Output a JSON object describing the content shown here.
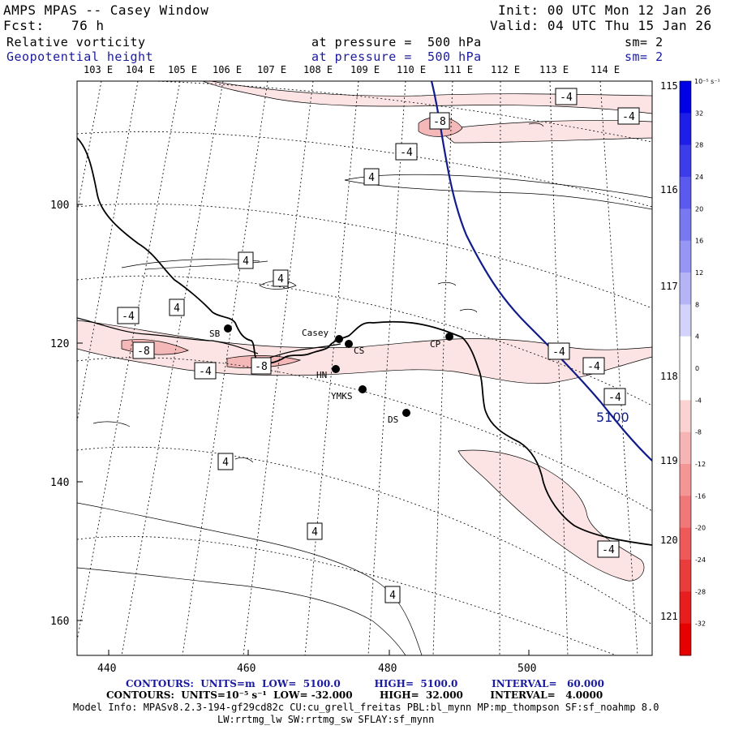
{
  "header": {
    "model_title": "AMPS MPAS -- Casey Window",
    "init": "Init: 00 UTC Mon 12 Jan 26",
    "fcst_label": "Fcst:",
    "fcst_value": "76 h",
    "valid": "Valid: 04 UTC Thu 15 Jan 26",
    "field1": "Relative vorticity",
    "field1_level": "at pressure =  500 hPa",
    "field1_sm": "sm= 2",
    "field2": "Geopotential height",
    "field2_level": "at pressure =  500 hPa",
    "field2_sm": "sm= 2"
  },
  "map": {
    "lon_labels_top": [
      "103 E",
      "104 E",
      "105 E",
      "106 E",
      "107 E",
      "108 E",
      "109 E",
      "110 E",
      "111 E",
      "112 E",
      "113 E",
      "114 E"
    ],
    "lon_labels_right": [
      "115 E",
      "116 E",
      "117 E",
      "118 E",
      "119 E",
      "120 E",
      "121 E"
    ],
    "x_ticks": [
      "440",
      "460",
      "480",
      "500"
    ],
    "y_ticks": [
      "100",
      "120",
      "140",
      "160"
    ],
    "stations": [
      {
        "name": "SB"
      },
      {
        "name": "Casey"
      },
      {
        "name": "CS"
      },
      {
        "name": "HN"
      },
      {
        "name": "YMKS"
      },
      {
        "name": "CP"
      },
      {
        "name": "DS"
      }
    ],
    "vort_labels": [
      "-4",
      "-4",
      "-8",
      "-4",
      "4",
      "4",
      "4",
      "-4",
      "4",
      "-8",
      "-4",
      "-8",
      "-4",
      "-4",
      "-4",
      "4",
      "4",
      "4",
      "-4"
    ],
    "height_label": "5100",
    "colors": {
      "height_contour": "#101c8c",
      "coast": "#000000",
      "neg_fill": "#fce4e4",
      "neg_fill2": "#f4b8b8"
    }
  },
  "colorbar": {
    "unit": "10⁻⁵ s⁻¹",
    "labels": [
      "32",
      "28",
      "24",
      "20",
      "16",
      "12",
      "8",
      "4",
      "0",
      "-4",
      "-8",
      "-12",
      "-16",
      "-20",
      "-24",
      "-28",
      "-32"
    ],
    "colors": [
      "#0000e6",
      "#1e1ee8",
      "#3c3ceb",
      "#5a5aee",
      "#7878f1",
      "#9696f4",
      "#b4b4f7",
      "#d2d2fa",
      "#ffffff",
      "#ffffff",
      "#fad2d2",
      "#f7b4b4",
      "#f49696",
      "#f17878",
      "#ee5a5a",
      "#eb3c3c",
      "#e81e1e",
      "#e60000"
    ]
  },
  "footer": {
    "line1": "CONTOURS:  UNITS=m  LOW=  5100.0          HIGH=  5100.0          INTERVAL=   60.000",
    "line2": "CONTOURS:  UNITS=10⁻⁵ s⁻¹  LOW= -32.000        HIGH=  32.000        INTERVAL=   4.0000",
    "line3": "Model Info: MPASv8.2.3-194-gf29cd82c CU:cu_grell_freitas PBL:bl_mynn MP:mp_thompson SF:sf_noahmp 8.0",
    "line4": "LW:rrtmg_lw SW:rrtmg_sw SFLAY:sf_mynn"
  }
}
